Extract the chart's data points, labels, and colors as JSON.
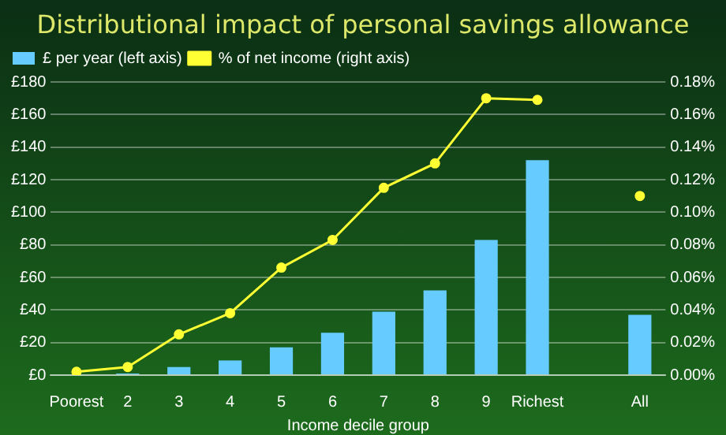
{
  "chart_data": {
    "type": "bar",
    "title": "Distributional impact of personal savings allowance",
    "xlabel": "Income decile group",
    "categories": [
      "Poorest",
      "2",
      "3",
      "4",
      "5",
      "6",
      "7",
      "8",
      "9",
      "Richest",
      null,
      "All"
    ],
    "series": [
      {
        "name": "£ per year (left axis)",
        "color": "#66ccff",
        "values": [
          0,
          1,
          5,
          9,
          17,
          26,
          39,
          52,
          83,
          132,
          null,
          37
        ]
      },
      {
        "name": "% of net income (right axis)",
        "type": "line",
        "axis": "y2",
        "color": "#ffff33",
        "values": [
          0.002,
          0.005,
          0.025,
          0.038,
          0.066,
          0.083,
          0.115,
          0.13,
          0.17,
          0.169,
          null,
          0.11
        ]
      }
    ],
    "ylim": [
      0,
      180
    ],
    "yticks": [
      {
        "value": 0,
        "label": "£0"
      },
      {
        "value": 20,
        "label": "£20"
      },
      {
        "value": 40,
        "label": "£40"
      },
      {
        "value": 60,
        "label": "£60"
      },
      {
        "value": 80,
        "label": "£80"
      },
      {
        "value": 100,
        "label": "£100"
      },
      {
        "value": 120,
        "label": "£120"
      },
      {
        "value": 140,
        "label": "£140"
      },
      {
        "value": 160,
        "label": "£160"
      },
      {
        "value": 180,
        "label": "£180"
      }
    ],
    "y2lim": [
      0,
      0.18
    ],
    "y2ticks": [
      {
        "value": 0,
        "label": "0.00%"
      },
      {
        "value": 0.02,
        "label": "0.02%"
      },
      {
        "value": 0.04,
        "label": "0.04%"
      },
      {
        "value": 0.06,
        "label": "0.06%"
      },
      {
        "value": 0.08,
        "label": "0.08%"
      },
      {
        "value": 0.1,
        "label": "0.10%"
      },
      {
        "value": 0.12,
        "label": "0.12%"
      },
      {
        "value": 0.14,
        "label": "0.14%"
      },
      {
        "value": 0.16,
        "label": "0.16%"
      },
      {
        "value": 0.18,
        "label": "0.18%"
      }
    ],
    "grid": "y",
    "legend": "top left",
    "marker": "circle",
    "line_style": "solid"
  }
}
